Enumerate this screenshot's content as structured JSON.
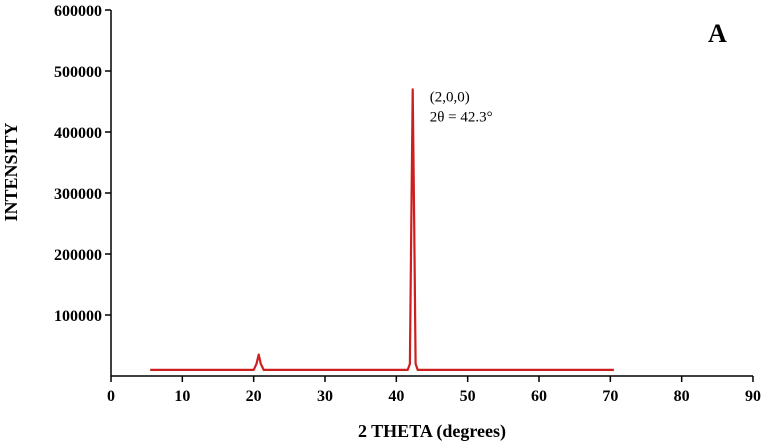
{
  "chart_data": {
    "type": "line",
    "panel_label": "A",
    "xlabel": "2 THETA (degrees)",
    "ylabel": "INTENSITY",
    "xlim": [
      0,
      90
    ],
    "ylim": [
      0,
      600000
    ],
    "x_ticks": [
      0,
      10,
      20,
      30,
      40,
      50,
      60,
      70,
      80,
      90
    ],
    "y_ticks": [
      100000,
      200000,
      300000,
      400000,
      500000,
      600000
    ],
    "grid": false,
    "series_color": "#cc1f1f",
    "series": [
      {
        "x": [
          5.5,
          20.0,
          20.4,
          20.7,
          21.0,
          21.4,
          41.6,
          41.9,
          42.1,
          42.3,
          42.5,
          42.7,
          43.0,
          70.5
        ],
        "y": [
          10000,
          10000,
          20000,
          35000,
          20000,
          10000,
          10000,
          20000,
          250000,
          470000,
          250000,
          20000,
          10000,
          10000
        ]
      }
    ],
    "annotations": [
      {
        "lines": [
          "(2,0,0)",
          "2θ = 42.3°"
        ],
        "x": 42.3,
        "y": 470000
      }
    ]
  }
}
